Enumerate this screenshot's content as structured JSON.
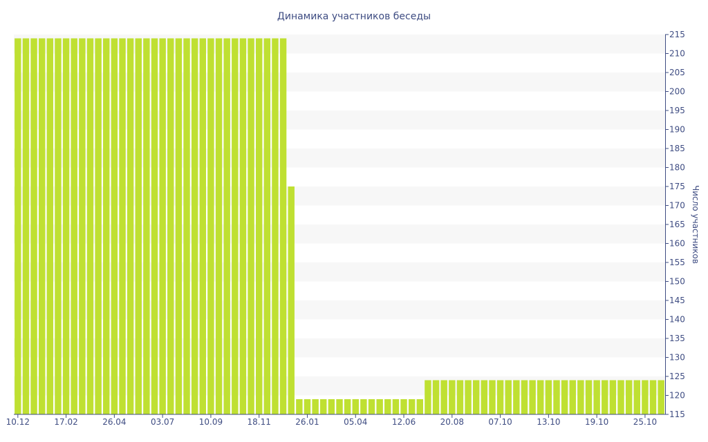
{
  "chart_data": {
    "type": "bar",
    "title": "Динамика участников беседы",
    "ylabel": "Число участников",
    "xlabel": "",
    "ylim": [
      115,
      215
    ],
    "y_ticks": [
      115,
      120,
      125,
      130,
      135,
      140,
      145,
      150,
      155,
      160,
      165,
      170,
      175,
      180,
      185,
      190,
      195,
      200,
      205,
      210,
      215
    ],
    "y_axis_position": "right",
    "grid": "alternating-horizontal-bands",
    "legend": "none",
    "x_tick_labels": [
      {
        "index": 0,
        "label": "10.12"
      },
      {
        "index": 6,
        "label": "17.02"
      },
      {
        "index": 12,
        "label": "26.04"
      },
      {
        "index": 18,
        "label": "03.07"
      },
      {
        "index": 24,
        "label": "10.09"
      },
      {
        "index": 30,
        "label": "18.11"
      },
      {
        "index": 36,
        "label": "26.01"
      },
      {
        "index": 42,
        "label": "05.04"
      },
      {
        "index": 48,
        "label": "12.06"
      },
      {
        "index": 54,
        "label": "20.08"
      },
      {
        "index": 60,
        "label": "07.10"
      },
      {
        "index": 66,
        "label": "13.10"
      },
      {
        "index": 72,
        "label": "19.10"
      },
      {
        "index": 78,
        "label": "25.10"
      }
    ],
    "values": [
      214,
      214,
      214,
      214,
      214,
      214,
      214,
      214,
      214,
      214,
      214,
      214,
      214,
      214,
      214,
      214,
      214,
      214,
      214,
      214,
      214,
      214,
      214,
      214,
      214,
      214,
      214,
      214,
      214,
      214,
      214,
      214,
      214,
      214,
      175,
      119,
      119,
      119,
      119,
      119,
      119,
      119,
      119,
      119,
      119,
      119,
      119,
      119,
      119,
      119,
      119,
      124,
      124,
      124,
      124,
      124,
      124,
      124,
      124,
      124,
      124,
      124,
      124,
      124,
      124,
      124,
      124,
      124,
      124,
      124,
      124,
      124,
      124,
      124,
      124,
      124,
      124,
      124,
      124,
      124,
      124
    ],
    "colors": {
      "bar": "#bfe032",
      "band": "#f7f7f7",
      "text": "#3e4c82",
      "axis": "#3e4c82"
    }
  }
}
